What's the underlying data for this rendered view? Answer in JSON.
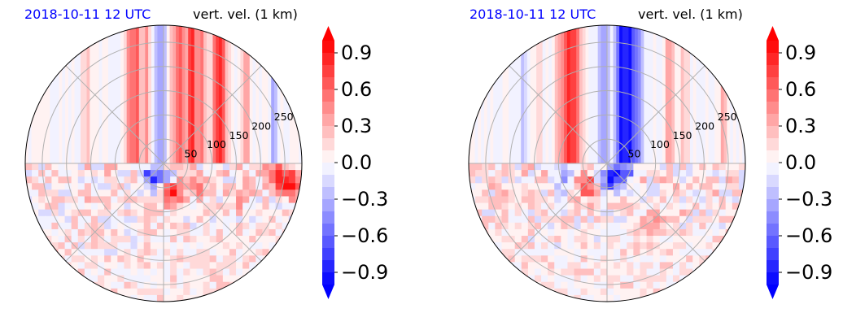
{
  "colors": {
    "date": "#0000ff",
    "title": "#000000",
    "grid": "#b0b0b0",
    "cmap_negative_end": "#0000ff",
    "cmap_positive_end": "#ff0000",
    "cmap_center": "#ffffff"
  },
  "chart_data": [
    {
      "type": "heatmap",
      "projection": "polar",
      "date_label": "2018-10-11 12 UTC",
      "title": "vert. vel. (1 km)",
      "radial_ticks": [
        "50",
        "100",
        "150",
        "200",
        "250"
      ],
      "radial_values": [
        50,
        100,
        150,
        200,
        250
      ],
      "rlim": [
        0,
        285
      ],
      "angular_grid_deg": [
        0,
        45,
        90,
        135,
        180,
        225,
        270,
        315
      ],
      "grid": true,
      "colorbar": {
        "ticks": [
          "0.9",
          "0.6",
          "0.3",
          "0.0",
          "−0.3",
          "−0.6",
          "−0.9"
        ],
        "tick_values": [
          0.9,
          0.6,
          0.3,
          0.0,
          -0.3,
          -0.6,
          -0.9
        ],
        "levels": 20,
        "range": [
          -1.0,
          1.0
        ],
        "extend": "both"
      },
      "bands": [
        {
          "x": -0.25,
          "v": 0.4
        },
        {
          "x": -0.2,
          "v": 0.55
        },
        {
          "x": -0.12,
          "v": 0.35
        },
        {
          "x": 0.12,
          "v": 0.7
        },
        {
          "x": 0.2,
          "v": 0.85
        },
        {
          "x": 0.27,
          "v": 0.6
        },
        {
          "x": 0.38,
          "v": 0.5
        },
        {
          "x": 0.42,
          "v": 0.65
        },
        {
          "x": 0.6,
          "v": 0.3
        },
        {
          "x": 0.8,
          "v": -0.4
        },
        {
          "x": -0.55,
          "v": 0.2
        },
        {
          "x": -0.05,
          "v": -0.25
        },
        {
          "x": 0.0,
          "v": -0.3
        },
        {
          "x": 0.06,
          "v": 0.25
        },
        {
          "x": -0.8,
          "v": -0.15
        }
      ],
      "blobs": [
        {
          "x": 0.05,
          "y": 0.2,
          "v": 0.9
        },
        {
          "x": -0.1,
          "y": 0.1,
          "v": -0.7
        },
        {
          "x": 0.0,
          "y": 0.12,
          "v": -0.6
        },
        {
          "x": 0.93,
          "y": 0.15,
          "v": 0.9
        },
        {
          "x": 0.82,
          "y": 0.08,
          "v": 0.8
        },
        {
          "x": 0.25,
          "y": 0.15,
          "v": 0.4
        },
        {
          "x": 0.55,
          "y": 0.25,
          "v": 0.3
        }
      ]
    },
    {
      "type": "heatmap",
      "projection": "polar",
      "date_label": "2018-10-11 12 UTC",
      "title": "vert. vel. (1 km)",
      "radial_ticks": [
        "50",
        "100",
        "150",
        "200",
        "250"
      ],
      "radial_values": [
        50,
        100,
        150,
        200,
        250
      ],
      "rlim": [
        0,
        285
      ],
      "angular_grid_deg": [
        0,
        45,
        90,
        135,
        180,
        225,
        270,
        315
      ],
      "grid": true,
      "colorbar": {
        "ticks": [
          "0.9",
          "0.6",
          "0.3",
          "0.0",
          "−0.3",
          "−0.6",
          "−0.9"
        ],
        "tick_values": [
          0.9,
          0.6,
          0.3,
          0.0,
          -0.3,
          -0.6,
          -0.9
        ],
        "levels": 20,
        "range": [
          -1.0,
          1.0
        ],
        "extend": "both"
      },
      "bands": [
        {
          "x": -0.02,
          "v": -0.4
        },
        {
          "x": 0.1,
          "v": -0.95
        },
        {
          "x": 0.16,
          "v": -0.85
        },
        {
          "x": 0.22,
          "v": -0.5
        },
        {
          "x": -0.28,
          "v": 0.8
        },
        {
          "x": -0.22,
          "v": 0.6
        },
        {
          "x": -0.35,
          "v": 0.35
        },
        {
          "x": 0.45,
          "v": 0.4
        },
        {
          "x": 0.55,
          "v": 0.3
        },
        {
          "x": 0.85,
          "v": 0.3
        },
        {
          "x": -0.5,
          "v": 0.2
        },
        {
          "x": -0.6,
          "v": -0.2
        }
      ],
      "blobs": [
        {
          "x": 0.02,
          "y": 0.1,
          "v": -0.9
        },
        {
          "x": 0.12,
          "y": 0.06,
          "v": -0.8
        },
        {
          "x": -0.15,
          "y": 0.15,
          "v": 0.6
        },
        {
          "x": 0.3,
          "y": 0.45,
          "v": 0.4
        },
        {
          "x": -0.3,
          "y": 0.1,
          "v": -0.5
        }
      ]
    }
  ]
}
